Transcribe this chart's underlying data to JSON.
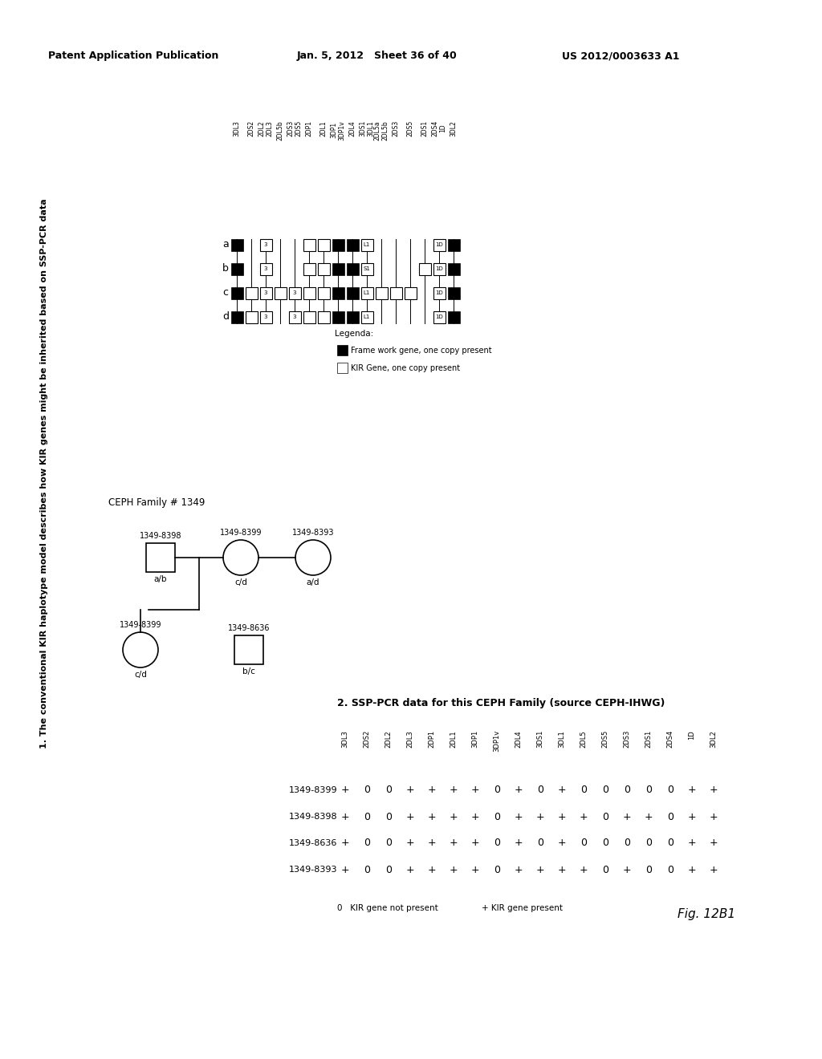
{
  "header_left": "Patent Application Publication",
  "header_mid": "Jan. 5, 2012   Sheet 36 of 40",
  "header_right": "US 2012/0003633 A1",
  "fig_label": "Fig. 12B1",
  "title1": "1. The conventional KIR haplotype model describes how KIR genes might be inherited based on SSP-PCR data",
  "title2": "2. SSP-PCR data for this CEPH Family (source CEPH-IHWG)",
  "gene_columns": [
    "3DL3",
    "2DS2",
    "2DL2\n2DL3",
    "2DL5b",
    "2DS3\n2DS5",
    "2DP1",
    "2DL1",
    "3DP1\n3DP1v",
    "2DL4",
    "3DS1\n3DL1",
    "2DL5a\n2DL5b",
    "2DS3",
    "2DS5",
    "2DS1",
    "2DS4\n1D",
    "3DL2"
  ],
  "haplotype_labels": [
    "a",
    "b",
    "c",
    "d"
  ],
  "haplotype_rows": [
    [
      1,
      0,
      "3",
      0,
      0,
      1,
      1,
      1,
      1,
      "L1",
      0,
      0,
      0,
      0,
      "1D",
      1
    ],
    [
      1,
      0,
      "3",
      0,
      0,
      1,
      1,
      1,
      1,
      "S1",
      0,
      0,
      0,
      1,
      "1D",
      1
    ],
    [
      1,
      1,
      "3",
      1,
      "3",
      1,
      1,
      1,
      1,
      "L1",
      1,
      1,
      1,
      0,
      "1D",
      1
    ],
    [
      1,
      1,
      "3",
      0,
      "3",
      1,
      1,
      1,
      1,
      "L1",
      0,
      0,
      0,
      0,
      "1D",
      1
    ]
  ],
  "framework_cols": [
    0,
    7,
    8,
    15
  ],
  "family_id": "CEPH Family # 1349",
  "father_id": "1349-8398",
  "father_hap": "a/b",
  "mother_id": "1349-8399",
  "mother_hap": "c/d",
  "son_id": "1349-8636",
  "son_hap": "b/c",
  "extra_id": "1349-8393",
  "extra_hap": "a/d",
  "ssp_columns": [
    "3DL3",
    "2DS2",
    "2DL2",
    "2DL3",
    "2DP1",
    "2DL1",
    "3DP1",
    "3DP1v",
    "2DL4",
    "3DS1",
    "3DL1",
    "2DL5",
    "2DS5",
    "2DS3",
    "2DS1",
    "2DS4",
    "1D",
    "3DL2"
  ],
  "ssp_individuals": [
    "1349-8399",
    "1349-8398",
    "1349-8636",
    "1349-8393"
  ],
  "ssp_data": [
    [
      "+",
      "0",
      "0",
      "+",
      "+",
      "+",
      "+",
      "0",
      "+",
      "0",
      "+",
      "0",
      "0",
      "0",
      "0",
      "0",
      "+",
      "+"
    ],
    [
      "+",
      "0",
      "0",
      "+",
      "+",
      "+",
      "+",
      "0",
      "+",
      "+",
      "+",
      "+",
      "0",
      "+",
      "+",
      "0",
      "+",
      "+"
    ],
    [
      "+",
      "0",
      "0",
      "+",
      "+",
      "+",
      "+",
      "0",
      "+",
      "0",
      "+",
      "0",
      "0",
      "0",
      "0",
      "0",
      "+",
      "+"
    ],
    [
      "+",
      "0",
      "0",
      "+",
      "+",
      "+",
      "+",
      "0",
      "+",
      "+",
      "+",
      "+",
      "0",
      "+",
      "0",
      "0",
      "+",
      "+"
    ]
  ],
  "legend_fw": "Frame work gene, one copy present",
  "legend_kir": "KIR Gene, one copy present",
  "legend_plus": "+ KIR gene present",
  "legend_zero": "0  KIR gene not present",
  "bg_color": "#ffffff"
}
